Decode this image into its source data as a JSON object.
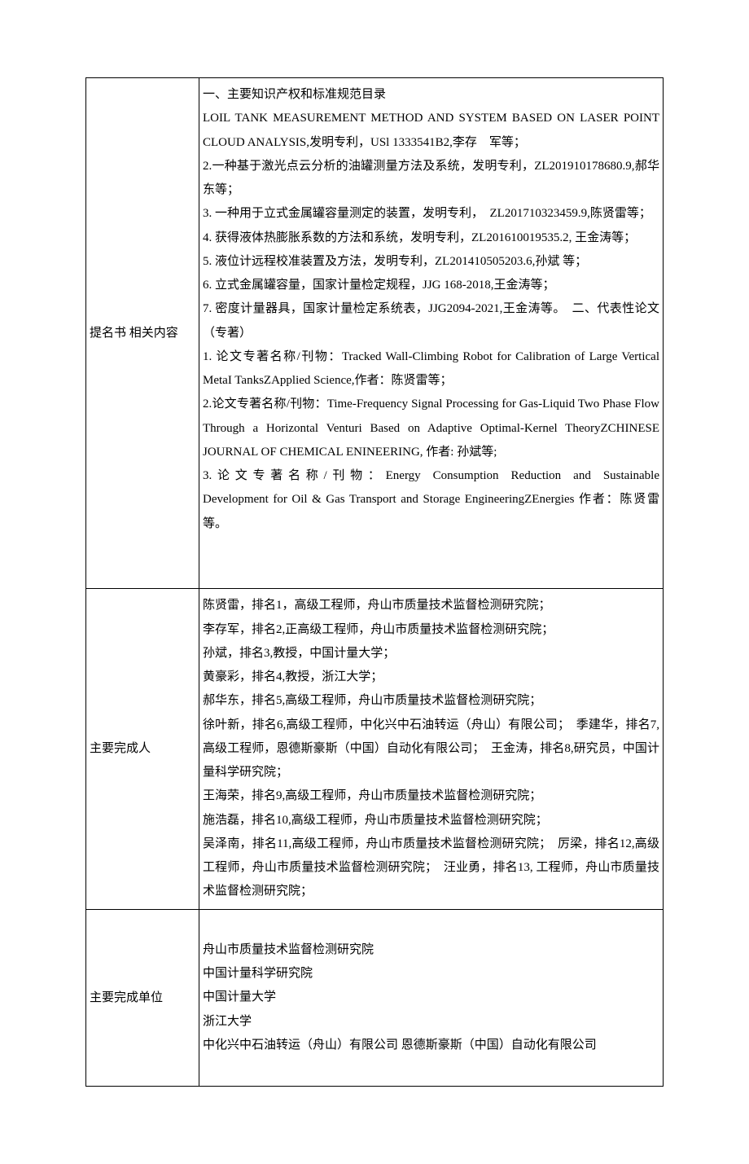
{
  "rows": [
    {
      "label": "提名书 相关内容",
      "content": [
        "一、主要知识产权和标准规范目录",
        "LOIL TANK MEASUREMENT METHOD AND SYSTEM BASED ON LASER POINT CLOUD ANALYSIS,发明专利，USl 1333541B2,李存　军等；",
        "2.一种基于激光点云分析的油罐测量方法及系统，发明专利，ZL201910178680.9,郝华东等；",
        "3. 一种用于立式金属罐容量测定的装置，发明专利，　ZL201710323459.9,陈贤雷等；",
        "4. 获得液体热膨胀系数的方法和系统，发明专利，ZL201610019535.2, 王金涛等；",
        "5. 液位计远程校准装置及方法，发明专利，ZL201410505203.6,孙斌 等；",
        "6. 立式金属罐容量，国家计量检定规程，JJG 168-2018,王金涛等；",
        "7. 密度计量器具，国家计量检定系统表，JJG2094-2021,王金涛等。　二、代表性论文（专著）",
        "1. 论文专著名称/刊物：Tracked Wall-Climbing Robot for Calibration of Large Vertical MetaI TanksZApplied Science,作者：陈贤雷等；",
        "2.论文专著名称/刊物：Time-Frequency Signal Processing for Gas-Liquid Two Phase Flow Through a Horizontal Venturi Based on Adaptive Optimal-Kernel TheoryZCHINESE JOURNAL OF CHEMICAL ENINEERING, 作者: 孙斌等;",
        "3.论文专著名称/刊物：Energy Consumption Reduction and Sustainable Development for Oil & Gas Transport and Storage EngineeringZEnergies 作者：陈贤雷等。",
        " ",
        " "
      ]
    },
    {
      "label": "主要完成人",
      "content": [
        "陈贤雷，排名1，高级工程师，舟山市质量技术监督检测研究院；",
        "李存军，排名2,正高级工程师，舟山市质量技术监督检测研究院；",
        "孙斌，排名3,教授，中国计量大学；",
        "黄豪彩，排名4,教授，浙江大学；",
        "郝华东，排名5,高级工程师，舟山市质量技术监督检测研究院；",
        "徐叶新，排名6,高级工程师，中化兴中石油转运（舟山）有限公司；　季建华，排名7,高级工程师，恩德斯豪斯（中国）自动化有限公司；　王金涛，排名8,研究员，中国计量科学研究院；",
        "王海荣，排名9,高级工程师，舟山市质量技术监督检测研究院；",
        "施浩磊，排名10,高级工程师，舟山市质量技术监督检测研究院；",
        "吴泽南，排名11,高级工程师，舟山市质量技术监督检测研究院；　厉梁，排名12,高级工程师，舟山市质量技术监督检测研究院；　汪业勇，排名13, 工程师，舟山市质量技术监督检测研究院；"
      ]
    },
    {
      "label": "主要完成单位",
      "content": [
        " ",
        "舟山市质量技术监督检测研究院",
        "中国计量科学研究院",
        "中国计量大学",
        "浙江大学",
        "中化兴中石油转运（舟山）有限公司  恩德斯豪斯（中国）自动化有限公司",
        " "
      ]
    }
  ]
}
